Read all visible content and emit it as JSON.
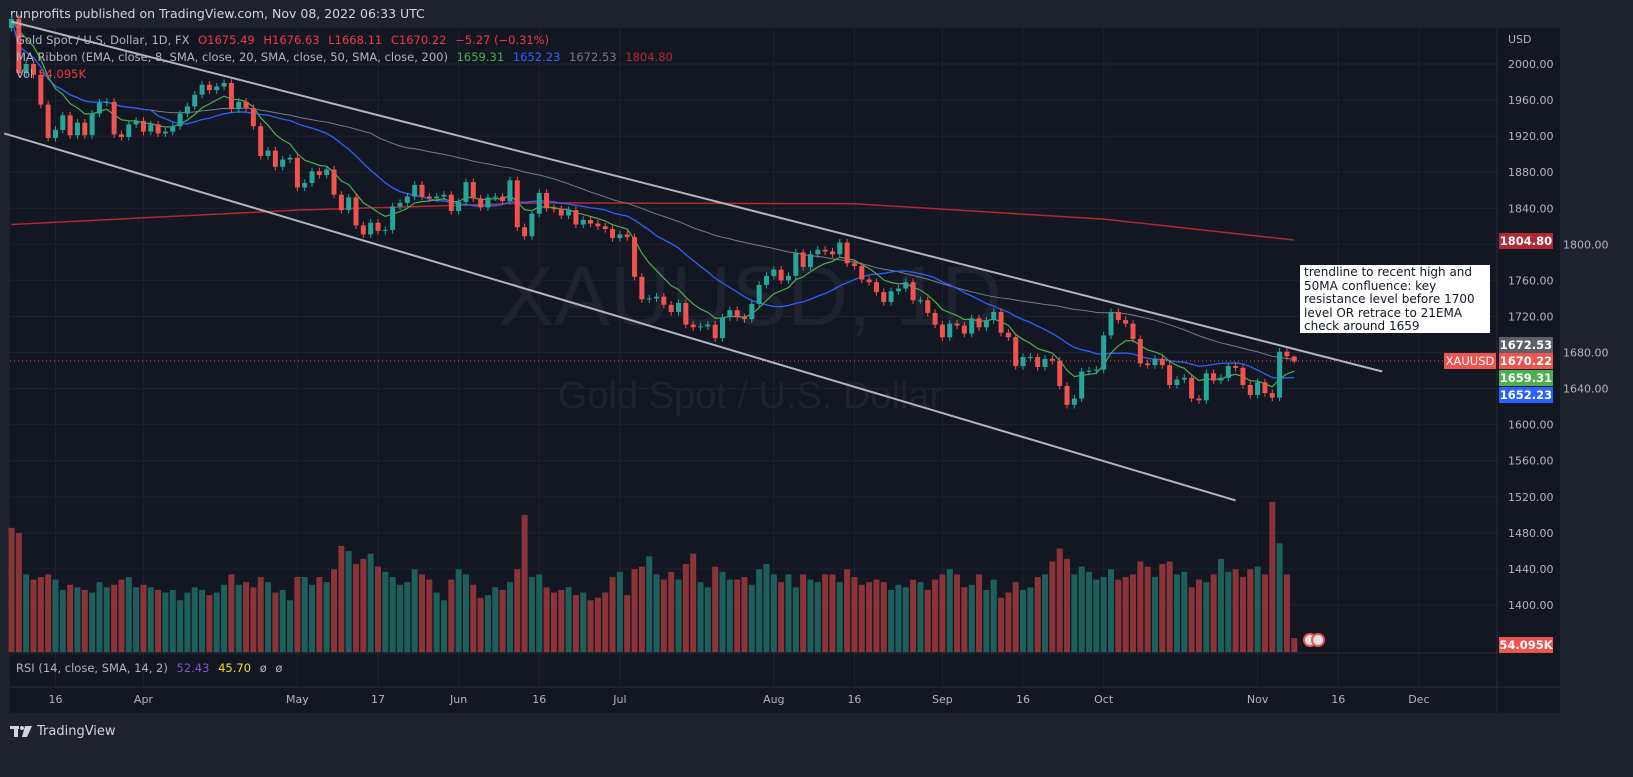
{
  "publisher_line": "runprofits published on TradingView.com, Nov 08, 2022 06:33 UTC",
  "legend": {
    "symbol": "Gold Spot / U.S. Dollar, 1D, FX",
    "open": "O1675.49",
    "high": "H1676.63",
    "low": "L1668.11",
    "close": "C1670.22",
    "change": "−5.27 (−0.31%)",
    "ma_label": "MA Ribbon (EMA, close, 8, SMA, close, 20, SMA, close, 50, SMA, close, 200)",
    "ma_values": [
      "1659.31",
      "1652.23",
      "1672.53",
      "1804.80"
    ],
    "vol_label": "Vol",
    "vol_value": "54.095K",
    "rsi_label": "RSI (14, close, SMA, 14, 2)",
    "rsi_value": "52.43",
    "rsi_ma": "45.70",
    "rsi_extra1": "ø",
    "rsi_extra2": "ø"
  },
  "watermark": {
    "symbol": "XAUUSD, 1D",
    "name": "Gold Spot / U.S. Dollar"
  },
  "annotation": "trendline to recent high and 50MA confluence: key resistance level before 1700 level OR retrace to 21EMA check around 1659",
  "price_axis": {
    "currency": "USD"
  },
  "price_labels": {
    "sma50": "1672.53",
    "symbol_tag": "XAUUSD",
    "last": "1670.22",
    "ema8": "1659.31",
    "sma20": "1652.23",
    "sma200": "1804.80",
    "volume": "54.095K"
  },
  "footer": {
    "brand": "TradingView"
  },
  "colors": {
    "up": "#26a69a",
    "down": "#ef5350",
    "vol_up": "#1f5f5b",
    "vol_down": "#8a3338",
    "ema8": "#4caf50",
    "sma20": "#2962ff",
    "sma50": "#787b86",
    "sma200": "#b22833",
    "trendline": "#b2b5be",
    "background": "#131722"
  },
  "chart_data": {
    "type": "candlestick",
    "title": "Gold Spot / U.S. Dollar, 1D, FX",
    "start_date": "2022-03-08",
    "interval": "1D (weekdays)",
    "ylim": [
      1360,
      2040
    ],
    "yticks": [
      2000,
      1960,
      1920,
      1880,
      1840,
      1800,
      1760,
      1720,
      1680,
      1640,
      1600,
      1560,
      1520,
      1480,
      1440,
      1400
    ],
    "xticks": [
      {
        "label": "16",
        "date": "2022-03-16"
      },
      {
        "label": "Apr",
        "date": "2022-04-01"
      },
      {
        "label": "May",
        "date": "2022-05-02"
      },
      {
        "label": "17",
        "date": "2022-05-17"
      },
      {
        "label": "Jun",
        "date": "2022-06-01"
      },
      {
        "label": "16",
        "date": "2022-06-16"
      },
      {
        "label": "Jul",
        "date": "2022-07-01"
      },
      {
        "label": "Aug",
        "date": "2022-08-01"
      },
      {
        "label": "16",
        "date": "2022-08-16"
      },
      {
        "label": "Sep",
        "date": "2022-09-01"
      },
      {
        "label": "16",
        "date": "2022-09-16"
      },
      {
        "label": "Oct",
        "date": "2022-10-03"
      },
      {
        "label": "Nov",
        "date": "2022-11-01"
      },
      {
        "label": "16",
        "date": "2022-11-16"
      },
      {
        "label": "Dec",
        "date": "2022-12-01"
      }
    ],
    "closes": [
      2050,
      1990,
      2000,
      1988,
      1955,
      1918,
      1927,
      1943,
      1921,
      1935,
      1921,
      1945,
      1957,
      1958,
      1922,
      1919,
      1933,
      1937,
      1925,
      1933,
      1923,
      1925,
      1931,
      1945,
      1953,
      1966,
      1977,
      1971,
      1975,
      1979,
      1950,
      1958,
      1951,
      1931,
      1898,
      1904,
      1886,
      1894,
      1896,
      1863,
      1868,
      1881,
      1877,
      1883,
      1855,
      1838,
      1852,
      1821,
      1811,
      1824,
      1815,
      1816,
      1842,
      1846,
      1853,
      1866,
      1853,
      1851,
      1853,
      1855,
      1837,
      1847,
      1869,
      1851,
      1841,
      1852,
      1853,
      1848,
      1871,
      1819,
      1809,
      1834,
      1857,
      1840,
      1839,
      1832,
      1838,
      1822,
      1827,
      1823,
      1820,
      1817,
      1807,
      1811,
      1808,
      1764,
      1739,
      1740,
      1742,
      1733,
      1725,
      1735,
      1711,
      1708,
      1709,
      1711,
      1696,
      1719,
      1727,
      1719,
      1717,
      1734,
      1755,
      1765,
      1772,
      1760,
      1765,
      1791,
      1775,
      1789,
      1794,
      1792,
      1789,
      1802,
      1779,
      1776,
      1761,
      1758,
      1747,
      1736,
      1748,
      1751,
      1758,
      1738,
      1738,
      1724,
      1711,
      1697,
      1712,
      1710,
      1701,
      1718,
      1708,
      1716,
      1725,
      1702,
      1697,
      1665,
      1675,
      1675,
      1664,
      1673,
      1671,
      1643,
      1622,
      1629,
      1659,
      1660,
      1661,
      1699,
      1725,
      1716,
      1712,
      1695,
      1668,
      1666,
      1673,
      1666,
      1644,
      1650,
      1652,
      1629,
      1627,
      1657,
      1649,
      1652,
      1665,
      1663,
      1644,
      1633,
      1647,
      1635,
      1630,
      1681,
      1676,
      1670.22
    ],
    "last_bar": {
      "open": 1675.49,
      "high": 1676.63,
      "low": 1668.11,
      "close": 1670.22
    },
    "volume_k": [
      480,
      460,
      300,
      280,
      290,
      300,
      280,
      240,
      260,
      250,
      240,
      230,
      270,
      250,
      260,
      280,
      290,
      250,
      260,
      250,
      240,
      230,
      240,
      200,
      230,
      250,
      240,
      220,
      230,
      260,
      300,
      260,
      270,
      250,
      290,
      270,
      230,
      240,
      200,
      290,
      290,
      260,
      290,
      270,
      320,
      410,
      390,
      340,
      360,
      380,
      330,
      310,
      290,
      260,
      270,
      320,
      300,
      280,
      230,
      200,
      280,
      320,
      300,
      260,
      210,
      220,
      250,
      240,
      270,
      320,
      530,
      290,
      300,
      250,
      230,
      240,
      250,
      220,
      230,
      200,
      210,
      230,
      290,
      310,
      220,
      320,
      330,
      370,
      300,
      280,
      310,
      280,
      340,
      380,
      270,
      250,
      330,
      310,
      280,
      280,
      290,
      260,
      320,
      340,
      300,
      270,
      300,
      250,
      300,
      280,
      270,
      300,
      300,
      270,
      320,
      290,
      260,
      270,
      280,
      270,
      240,
      260,
      250,
      280,
      270,
      240,
      280,
      300,
      320,
      300,
      250,
      260,
      300,
      240,
      280,
      210,
      230,
      270,
      240,
      250,
      290,
      300,
      350,
      400,
      360,
      300,
      330,
      310,
      280,
      290,
      320,
      280,
      290,
      300,
      350,
      330,
      290,
      340,
      350,
      300,
      310,
      250,
      280,
      270,
      300,
      360,
      310,
      320,
      290,
      320,
      330,
      300,
      580,
      420,
      300,
      54.095
    ],
    "sma200": [
      {
        "date": "2022-03-08",
        "value": 1822
      },
      {
        "date": "2022-05-02",
        "value": 1838
      },
      {
        "date": "2022-06-16",
        "value": 1846
      },
      {
        "date": "2022-08-16",
        "value": 1845
      },
      {
        "date": "2022-10-03",
        "value": 1828
      },
      {
        "date": "2022-11-08",
        "value": 1804.8
      }
    ],
    "trendlines": [
      {
        "from": {
          "date": "2022-03-08",
          "price": 2047
        },
        "to": {
          "date": "2022-11-24",
          "price": 1659
        }
      },
      {
        "from": {
          "date": "2022-03-07",
          "price": 1923
        },
        "to": {
          "date": "2022-10-27",
          "price": 1516
        }
      }
    ]
  }
}
